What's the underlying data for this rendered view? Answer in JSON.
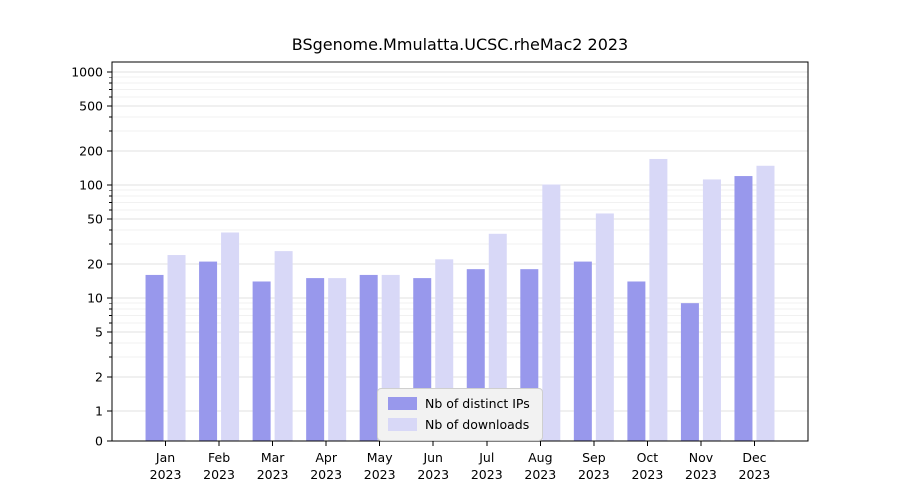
{
  "chart_data": {
    "type": "bar",
    "title": "BSgenome.Mmulatta.UCSC.rheMac2 2023",
    "categories": [
      "Jan",
      "Feb",
      "Mar",
      "Apr",
      "May",
      "Jun",
      "Jul",
      "Aug",
      "Sep",
      "Oct",
      "Nov",
      "Dec"
    ],
    "x_tick_labels": [
      [
        "Jan",
        "2023"
      ],
      [
        "Feb",
        "2023"
      ],
      [
        "Mar",
        "2023"
      ],
      [
        "Apr",
        "2023"
      ],
      [
        "May",
        "2023"
      ],
      [
        "Jun",
        "2023"
      ],
      [
        "Jul",
        "2023"
      ],
      [
        "Aug",
        "2023"
      ],
      [
        "Sep",
        "2023"
      ],
      [
        "Oct",
        "2023"
      ],
      [
        "Nov",
        "2023"
      ],
      [
        "Dec",
        "2023"
      ]
    ],
    "series": [
      {
        "name": "Nb of distinct IPs",
        "color": "#9898ec",
        "values": [
          16,
          21,
          14,
          15,
          16,
          15,
          18,
          18,
          21,
          14,
          9,
          120
        ]
      },
      {
        "name": "Nb of downloads",
        "color": "#d8d8f7",
        "values": [
          24,
          38,
          26,
          15,
          16,
          22,
          37,
          101,
          56,
          170,
          112,
          148
        ]
      }
    ],
    "y_axis": {
      "scale": "symlog",
      "ticks": [
        0,
        1,
        2,
        5,
        10,
        20,
        50,
        100,
        200,
        500,
        1000
      ],
      "minor_ticks": [
        3,
        4,
        6,
        7,
        8,
        9,
        30,
        40,
        60,
        70,
        80,
        90,
        300,
        400,
        600,
        700,
        800,
        900
      ],
      "ylim": [
        0,
        1200
      ]
    },
    "grid": true,
    "legend_position": "lower center",
    "colors": {
      "grid_major": "#e2e2e2",
      "grid_minor": "#f1f1f1",
      "legend_bg": "#f2f2f2",
      "axis": "#000000",
      "background": "#ffffff"
    }
  }
}
